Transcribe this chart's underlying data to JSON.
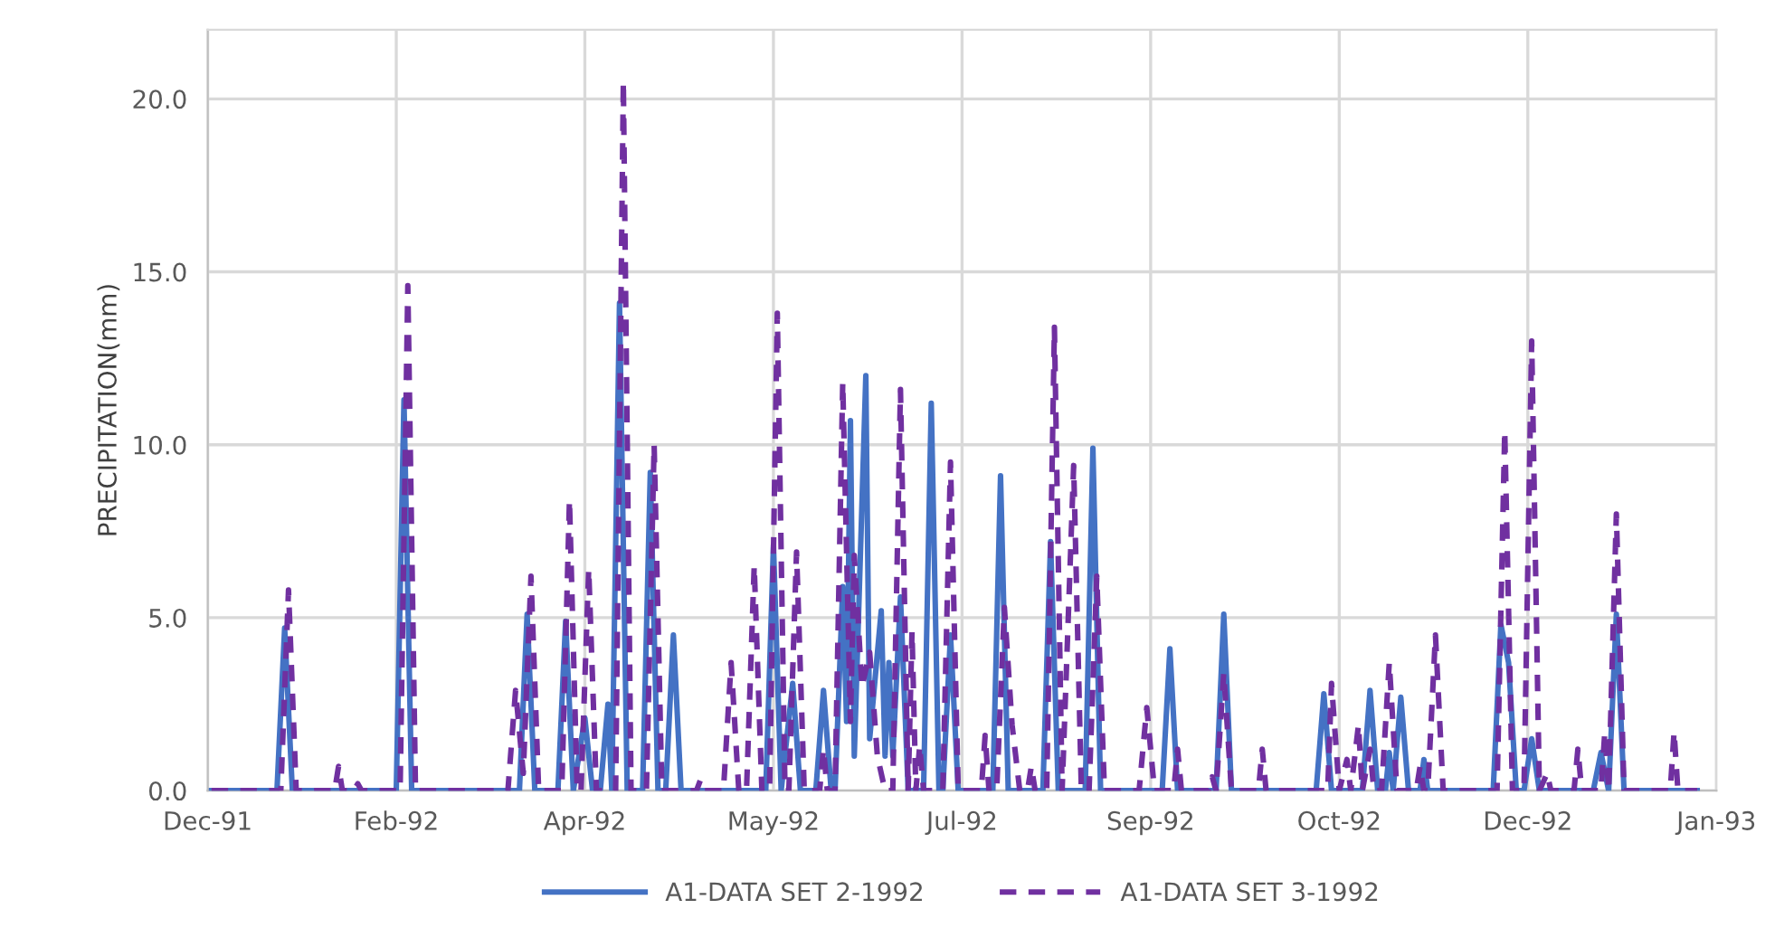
{
  "chart_data": {
    "type": "line",
    "ylabel": "PRECIPITATION(mm)",
    "xlim": [
      "1991-12-31",
      "1993-01-26"
    ],
    "xticks": [
      {
        "value": "1991-12-31",
        "label": "Dec-91"
      },
      {
        "value": "1992-02-18",
        "label": "Feb-92"
      },
      {
        "value": "1992-04-07",
        "label": "Apr-92"
      },
      {
        "value": "1992-05-26",
        "label": "May-92"
      },
      {
        "value": "1992-07-14",
        "label": "Jul-92"
      },
      {
        "value": "1992-09-01",
        "label": "Sep-92"
      },
      {
        "value": "1992-10-20",
        "label": "Oct-92"
      },
      {
        "value": "1992-12-08",
        "label": "Dec-92"
      },
      {
        "value": "1993-01-26",
        "label": "Jan-93"
      }
    ],
    "ylim": [
      0,
      22
    ],
    "yticks": [
      {
        "value": 0,
        "label": "0.0"
      },
      {
        "value": 5,
        "label": "5.0"
      },
      {
        "value": 10,
        "label": "10.0"
      },
      {
        "value": 15,
        "label": "15.0"
      },
      {
        "value": 20,
        "label": "20.0"
      }
    ],
    "grid": true,
    "legend": "bottom",
    "marker": "none",
    "series": [
      {
        "name": "A1-DATA SET 2-1992",
        "color": "#4472c4",
        "line_style": "solid",
        "x": [
          "1992-01-01",
          "1992-01-18",
          "1992-01-20",
          "1992-01-22",
          "1992-02-18",
          "1992-02-20",
          "1992-02-22",
          "1992-03-21",
          "1992-03-23",
          "1992-03-25",
          "1992-03-31",
          "1992-04-02",
          "1992-04-04",
          "1992-04-07",
          "1992-04-09",
          "1992-04-11",
          "1992-04-13",
          "1992-04-14",
          "1992-04-16",
          "1992-04-18",
          "1992-04-22",
          "1992-04-24",
          "1992-04-26",
          "1992-04-28",
          "1992-04-30",
          "1992-05-02",
          "1992-05-24",
          "1992-05-26",
          "1992-05-28",
          "1992-05-31",
          "1992-06-02",
          "1992-06-06",
          "1992-06-08",
          "1992-06-10",
          "1992-06-11",
          "1992-06-13",
          "1992-06-14",
          "1992-06-15",
          "1992-06-16",
          "1992-06-19",
          "1992-06-20",
          "1992-06-23",
          "1992-06-24",
          "1992-06-25",
          "1992-06-26",
          "1992-06-28",
          "1992-06-30",
          "1992-07-04",
          "1992-07-06",
          "1992-07-08",
          "1992-07-09",
          "1992-07-11",
          "1992-07-13",
          "1992-07-22",
          "1992-07-24",
          "1992-07-26",
          "1992-08-04",
          "1992-08-06",
          "1992-08-08",
          "1992-08-15",
          "1992-08-17",
          "1992-08-19",
          "1992-09-04",
          "1992-09-06",
          "1992-09-08",
          "1992-09-18",
          "1992-09-20",
          "1992-09-22",
          "1992-10-14",
          "1992-10-16",
          "1992-10-18",
          "1992-10-26",
          "1992-10-28",
          "1992-10-30",
          "1992-11-01",
          "1992-11-02",
          "1992-11-03",
          "1992-11-05",
          "1992-11-07",
          "1992-11-10",
          "1992-11-11",
          "1992-11-12",
          "1992-11-29",
          "1992-12-01",
          "1992-12-03",
          "1992-12-05",
          "1992-12-07",
          "1992-12-09",
          "1992-12-11",
          "1992-12-25",
          "1992-12-27",
          "1992-12-29",
          "1992-12-31",
          "1993-01-02",
          "1993-01-21"
        ],
        "values": [
          0,
          0,
          4.7,
          0,
          0,
          11.3,
          0,
          0,
          5.1,
          0,
          0,
          4.9,
          0,
          2.1,
          0,
          0,
          2.5,
          0,
          14.1,
          0,
          0,
          9.2,
          0,
          0,
          4.5,
          0,
          0,
          7.1,
          0,
          3.1,
          0,
          0,
          2.9,
          0,
          0,
          5.9,
          2.0,
          10.7,
          1.0,
          12.0,
          1.5,
          5.2,
          1.0,
          3.7,
          1.0,
          5.6,
          0,
          0,
          11.2,
          0,
          0,
          4.5,
          0,
          0,
          9.1,
          0,
          0,
          7.2,
          0,
          0,
          9.9,
          0,
          0,
          4.1,
          0,
          0,
          5.1,
          0,
          0,
          2.8,
          0,
          0,
          2.9,
          0,
          0,
          1.1,
          0,
          2.7,
          0,
          0,
          0.9,
          0,
          0,
          4.8,
          3.7,
          0,
          0,
          1.5,
          0,
          0,
          1.1,
          0,
          5.1,
          0,
          0
        ]
      },
      {
        "name": "A1-DATA SET 3-1992",
        "color": "#7030a0",
        "line_style": "dashed",
        "x": [
          "1992-01-01",
          "1992-01-19",
          "1992-01-21",
          "1992-01-23",
          "1992-02-02",
          "1992-02-03",
          "1992-02-04",
          "1992-02-07",
          "1992-02-08",
          "1992-02-09",
          "1992-02-19",
          "1992-02-21",
          "1992-02-23",
          "1992-03-18",
          "1992-03-20",
          "1992-03-22",
          "1992-03-24",
          "1992-03-26",
          "1992-04-01",
          "1992-04-03",
          "1992-04-05",
          "1992-04-06",
          "1992-04-08",
          "1992-04-10",
          "1992-04-15",
          "1992-04-17",
          "1992-04-19",
          "1992-04-23",
          "1992-04-25",
          "1992-04-27",
          "1992-05-06",
          "1992-05-07",
          "1992-05-08",
          "1992-05-13",
          "1992-05-15",
          "1992-05-17",
          "1992-05-19",
          "1992-05-21",
          "1992-05-23",
          "1992-05-25",
          "1992-05-27",
          "1992-05-29",
          "1992-05-30",
          "1992-06-01",
          "1992-06-03",
          "1992-06-07",
          "1992-06-08",
          "1992-06-09",
          "1992-06-11",
          "1992-06-13",
          "1992-06-15",
          "1992-06-16",
          "1992-06-18",
          "1992-06-20",
          "1992-06-22",
          "1992-06-24",
          "1992-06-26",
          "1992-06-28",
          "1992-06-30",
          "1992-07-01",
          "1992-07-02",
          "1992-07-03",
          "1992-07-04",
          "1992-07-09",
          "1992-07-11",
          "1992-07-13",
          "1992-07-19",
          "1992-07-20",
          "1992-07-21",
          "1992-07-23",
          "1992-07-25",
          "1992-07-27",
          "1992-07-29",
          "1992-07-31",
          "1992-08-01",
          "1992-08-02",
          "1992-08-05",
          "1992-08-07",
          "1992-08-09",
          "1992-08-12",
          "1992-08-14",
          "1992-08-16",
          "1992-08-18",
          "1992-08-20",
          "1992-08-29",
          "1992-08-31",
          "1992-09-02",
          "1992-09-07",
          "1992-09-08",
          "1992-09-09",
          "1992-09-16",
          "1992-09-17",
          "1992-09-18",
          "1992-09-20",
          "1992-09-22",
          "1992-09-29",
          "1992-09-30",
          "1992-10-01",
          "1992-10-17",
          "1992-10-18",
          "1992-10-20",
          "1992-10-22",
          "1992-10-23",
          "1992-10-25",
          "1992-10-26",
          "1992-10-28",
          "1992-10-29",
          "1992-10-31",
          "1992-11-02",
          "1992-11-04",
          "1992-11-09",
          "1992-11-10",
          "1992-11-11",
          "1992-11-12",
          "1992-11-14",
          "1992-11-16",
          "1992-11-30",
          "1992-12-02",
          "1992-12-04",
          "1992-12-07",
          "1992-12-09",
          "1992-12-11",
          "1992-12-13",
          "1992-12-14",
          "1992-12-20",
          "1992-12-21",
          "1992-12-22",
          "1992-12-27",
          "1992-12-28",
          "1992-12-29",
          "1992-12-31",
          "1993-01-02",
          "1993-01-14",
          "1993-01-15",
          "1993-01-16",
          "1993-01-21"
        ],
        "values": [
          0,
          0,
          5.8,
          0,
          0,
          0.7,
          0,
          0,
          0.2,
          0,
          0,
          14.6,
          0,
          0,
          2.9,
          0.5,
          6.2,
          0,
          0,
          8.4,
          0,
          0,
          6.4,
          0,
          0,
          20.5,
          0,
          0,
          10.0,
          0,
          0,
          0.3,
          0,
          0,
          3.7,
          0,
          0,
          6.5,
          0,
          0,
          13.8,
          0,
          0,
          6.9,
          0,
          0,
          1.2,
          0,
          0,
          11.8,
          2.0,
          6.8,
          3.0,
          4.0,
          1.0,
          0,
          0,
          11.6,
          0,
          4.6,
          0,
          1.3,
          0,
          0,
          9.5,
          0,
          0,
          1.6,
          0,
          0,
          5.3,
          1.9,
          0,
          0,
          0.7,
          0,
          0,
          13.4,
          0,
          9.4,
          0,
          0,
          6.2,
          0,
          0,
          2.4,
          0,
          0,
          1.2,
          0,
          0,
          0.4,
          0,
          3.4,
          0,
          0,
          1.2,
          0,
          0,
          3.1,
          0,
          0.9,
          0,
          1.9,
          0,
          1.2,
          0,
          0,
          3.7,
          0,
          0,
          0.7,
          0,
          0,
          4.5,
          0,
          0,
          10.4,
          0,
          0,
          13.0,
          0,
          0.5,
          0,
          0,
          1.2,
          0,
          0,
          1.7,
          0,
          8.0,
          0,
          0,
          1.7,
          0,
          0
        ]
      }
    ]
  }
}
